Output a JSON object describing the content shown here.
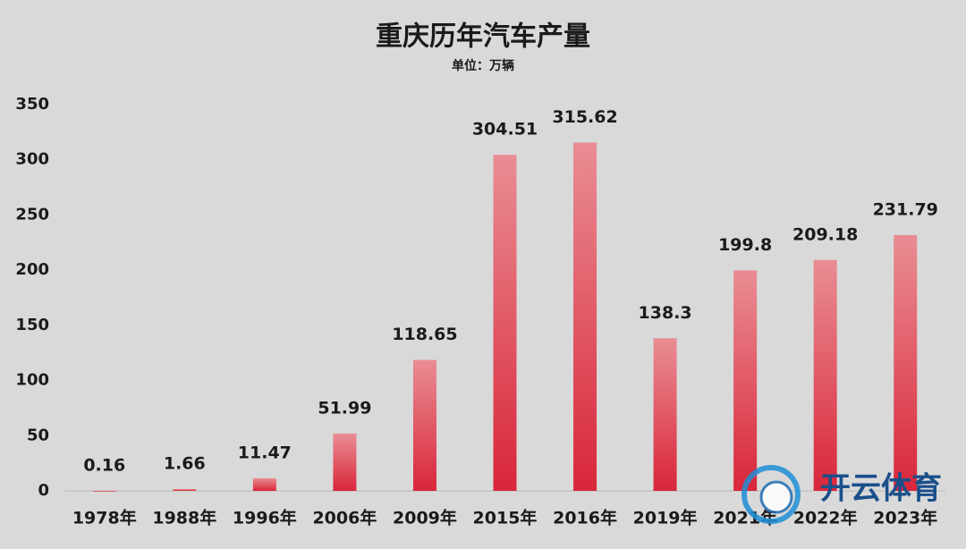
{
  "chart_data": {
    "type": "bar",
    "title": "重庆历年汽车产量",
    "subtitle": "单位：万辆",
    "categories": [
      "1978年",
      "1988年",
      "1996年",
      "2006年",
      "2009年",
      "2015年",
      "2016年",
      "2019年",
      "2021年",
      "2022年",
      "2023年"
    ],
    "values": [
      0.16,
      1.66,
      11.47,
      51.99,
      118.65,
      304.51,
      315.62,
      138.3,
      199.8,
      209.18,
      231.79
    ],
    "colors": [
      "#e98d93",
      "#d9263a"
    ],
    "ylim": [
      0,
      350
    ],
    "yticks": [
      0,
      50,
      100,
      150,
      200,
      250,
      300,
      350
    ],
    "grid": false,
    "watermark": "开云体育"
  }
}
